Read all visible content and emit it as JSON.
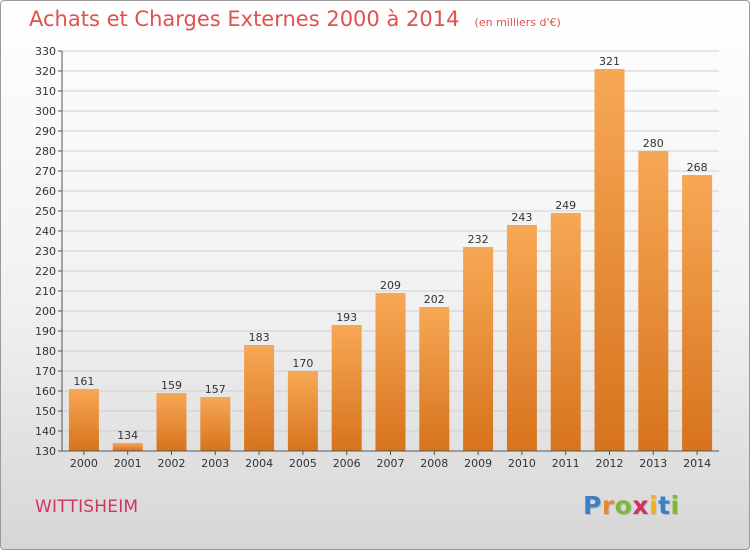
{
  "header": {
    "title": "Achats et Charges Externes 2000 à 2014",
    "unit": "(en milliers d'€)"
  },
  "footer": {
    "commune": "WITTISHEIM",
    "logo_text": "Proxiti",
    "logo_colors": [
      "#3d7fc4",
      "#e58a2b",
      "#7fb83a",
      "#d0335e",
      "#f0b020",
      "#3d7fc4",
      "#7fb83a"
    ]
  },
  "colors": {
    "title": "#e0524f",
    "commune": "#d0335e",
    "bar_top": "#f7a855",
    "bar_bottom": "#d7731d",
    "grid": "#cfcfcf"
  },
  "chart_data": {
    "type": "bar",
    "title": "Achats et Charges Externes 2000 à 2014",
    "subtitle": "(en milliers d'€)",
    "xlabel": "",
    "ylabel": "",
    "categories": [
      "2000",
      "2001",
      "2002",
      "2003",
      "2004",
      "2005",
      "2006",
      "2007",
      "2008",
      "2009",
      "2010",
      "2011",
      "2012",
      "2013",
      "2014"
    ],
    "values": [
      161,
      134,
      159,
      157,
      183,
      170,
      193,
      209,
      202,
      232,
      243,
      249,
      321,
      280,
      268
    ],
    "ylim": [
      130,
      330
    ],
    "yticks": [
      130,
      140,
      150,
      160,
      170,
      180,
      190,
      200,
      210,
      220,
      230,
      240,
      250,
      260,
      270,
      280,
      290,
      300,
      310,
      320,
      330
    ],
    "grid": true,
    "data_labels": true
  }
}
